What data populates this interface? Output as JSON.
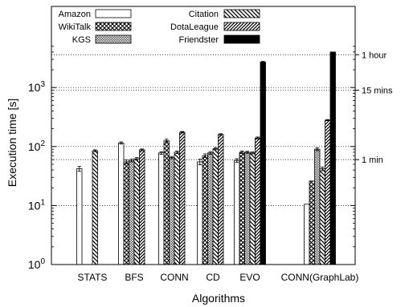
{
  "chart_data": {
    "type": "bar",
    "xlabel": "Algorithms",
    "ylabel": "Execution time [s]",
    "yscale": "log",
    "ylim": [
      1,
      5000
    ],
    "categories": [
      "STATS",
      "BFS",
      "CONN",
      "CD",
      "EVO",
      "CONN(GraphLab)"
    ],
    "y_ticks": [
      {
        "value": 1,
        "base": "10",
        "exp": "0"
      },
      {
        "value": 10,
        "base": "10",
        "exp": "1"
      },
      {
        "value": 100,
        "base": "10",
        "exp": "2"
      },
      {
        "value": 1000,
        "base": "10",
        "exp": "3"
      }
    ],
    "reference_lines": [
      {
        "value": 3600,
        "label": "1 hour"
      },
      {
        "value": 900,
        "label": "15 mins"
      },
      {
        "value": 60,
        "label": "1 min"
      }
    ],
    "series": [
      {
        "name": "Amazon",
        "pattern": "white",
        "values": [
          42,
          115,
          78,
          55,
          58,
          10.5
        ],
        "errors": [
          4,
          5,
          4,
          6,
          4,
          0
        ]
      },
      {
        "name": "WikiTalk",
        "pattern": "crosshatch",
        "values": [
          null,
          55,
          125,
          70,
          80,
          26
        ],
        "errors": [
          0,
          4,
          8,
          5,
          4,
          0
        ]
      },
      {
        "name": "KGS",
        "pattern": "dense",
        "values": [
          null,
          58,
          65,
          78,
          80,
          90
        ],
        "errors": [
          0,
          3,
          3,
          4,
          3,
          5
        ]
      },
      {
        "name": "Citation",
        "pattern": "backslash",
        "values": [
          85,
          62,
          80,
          92,
          78,
          42
        ],
        "errors": [
          3,
          3,
          4,
          4,
          3,
          3
        ]
      },
      {
        "name": "DotaLeague",
        "pattern": "slash",
        "values": [
          null,
          88,
          175,
          160,
          140,
          280
        ],
        "errors": [
          0,
          3,
          5,
          5,
          5,
          6
        ]
      },
      {
        "name": "Friendster",
        "pattern": "black",
        "values": [
          null,
          null,
          null,
          null,
          2700,
          4000
        ],
        "errors": [
          0,
          0,
          0,
          0,
          80,
          0
        ]
      }
    ]
  }
}
